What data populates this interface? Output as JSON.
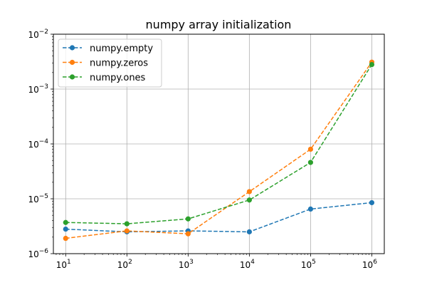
{
  "chart_data": {
    "type": "line",
    "title": "numpy array initialization",
    "xlabel": "",
    "ylabel": "",
    "xscale": "log",
    "yscale": "log",
    "xlim": [
      6.3,
      1600000
    ],
    "ylim": [
      1e-06,
      0.01
    ],
    "grid": true,
    "legend_position": "upper-left",
    "x": [
      10,
      100,
      1000,
      10000,
      100000,
      1000000
    ],
    "x_ticks": [
      {
        "value": 10,
        "base": "10",
        "exp": "1"
      },
      {
        "value": 100,
        "base": "10",
        "exp": "2"
      },
      {
        "value": 1000,
        "base": "10",
        "exp": "3"
      },
      {
        "value": 10000,
        "base": "10",
        "exp": "4"
      },
      {
        "value": 100000,
        "base": "10",
        "exp": "5"
      },
      {
        "value": 1000000,
        "base": "10",
        "exp": "6"
      }
    ],
    "y_ticks": [
      {
        "value": 1e-06,
        "base": "10",
        "exp": "−6"
      },
      {
        "value": 1e-05,
        "base": "10",
        "exp": "−5"
      },
      {
        "value": 0.0001,
        "base": "10",
        "exp": "−4"
      },
      {
        "value": 0.001,
        "base": "10",
        "exp": "−3"
      },
      {
        "value": 0.01,
        "base": "10",
        "exp": "−2"
      }
    ],
    "series": [
      {
        "name": "numpy.empty",
        "color": "#1f77b4",
        "values": [
          2.8e-06,
          2.5e-06,
          2.6e-06,
          2.5e-06,
          6.5e-06,
          8.5e-06
        ]
      },
      {
        "name": "numpy.zeros",
        "color": "#ff7f0e",
        "values": [
          1.9e-06,
          2.6e-06,
          2.3e-06,
          1.35e-05,
          8e-05,
          0.0031
        ]
      },
      {
        "name": "numpy.ones",
        "color": "#2ca02c",
        "values": [
          3.7e-06,
          3.5e-06,
          4.3e-06,
          9.5e-06,
          4.6e-05,
          0.0028
        ]
      }
    ]
  }
}
